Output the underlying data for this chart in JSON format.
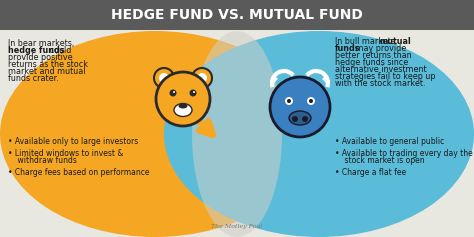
{
  "title": "HEDGE FUND VS. MUTUAL FUND",
  "title_bg": "#5a5a5a",
  "title_color": "#ffffff",
  "left_bg": "#f5a623",
  "right_bg": "#5abcd8",
  "overlap_color": "#d0cfc8",
  "bear_body_color": "#f5a623",
  "bear_outline": "#2a2a2a",
  "bull_body_color": "#3a7fbf",
  "bull_outline": "#1a1a2e",
  "bull_dark": "#2d5f8a",
  "left_intro_plain": "In bear markets,",
  "left_intro_bold": "hedge funds",
  "left_intro_rest": " could\nprovide positive\nreturns as the stock\nmarket and mutual\nfunds crater.",
  "left_bullets": [
    "Available only to large investors",
    "Limited windows to invest &\n  withdraw funds",
    "Charge fees based on performance"
  ],
  "right_intro_plain": "In bull markets, ",
  "right_intro_bold": "mutual\nfunds",
  "right_intro_rest": " may provide\nbetter returns than\nhedge funds since\nalternative investment\nstrategies fail to keep up\nwith the stock market.",
  "right_bullets": [
    "Available to general public",
    "Available to trading every day the\n  stock market is open",
    "Charge a flat fee"
  ],
  "arrow_orange": "#f5a623",
  "arrow_blue": "#5abcd8",
  "text_dark": "#1a1a1a",
  "watermark": "The Motley Fool",
  "watermark_color": "#777777",
  "bg_color": "#e8e8e0"
}
